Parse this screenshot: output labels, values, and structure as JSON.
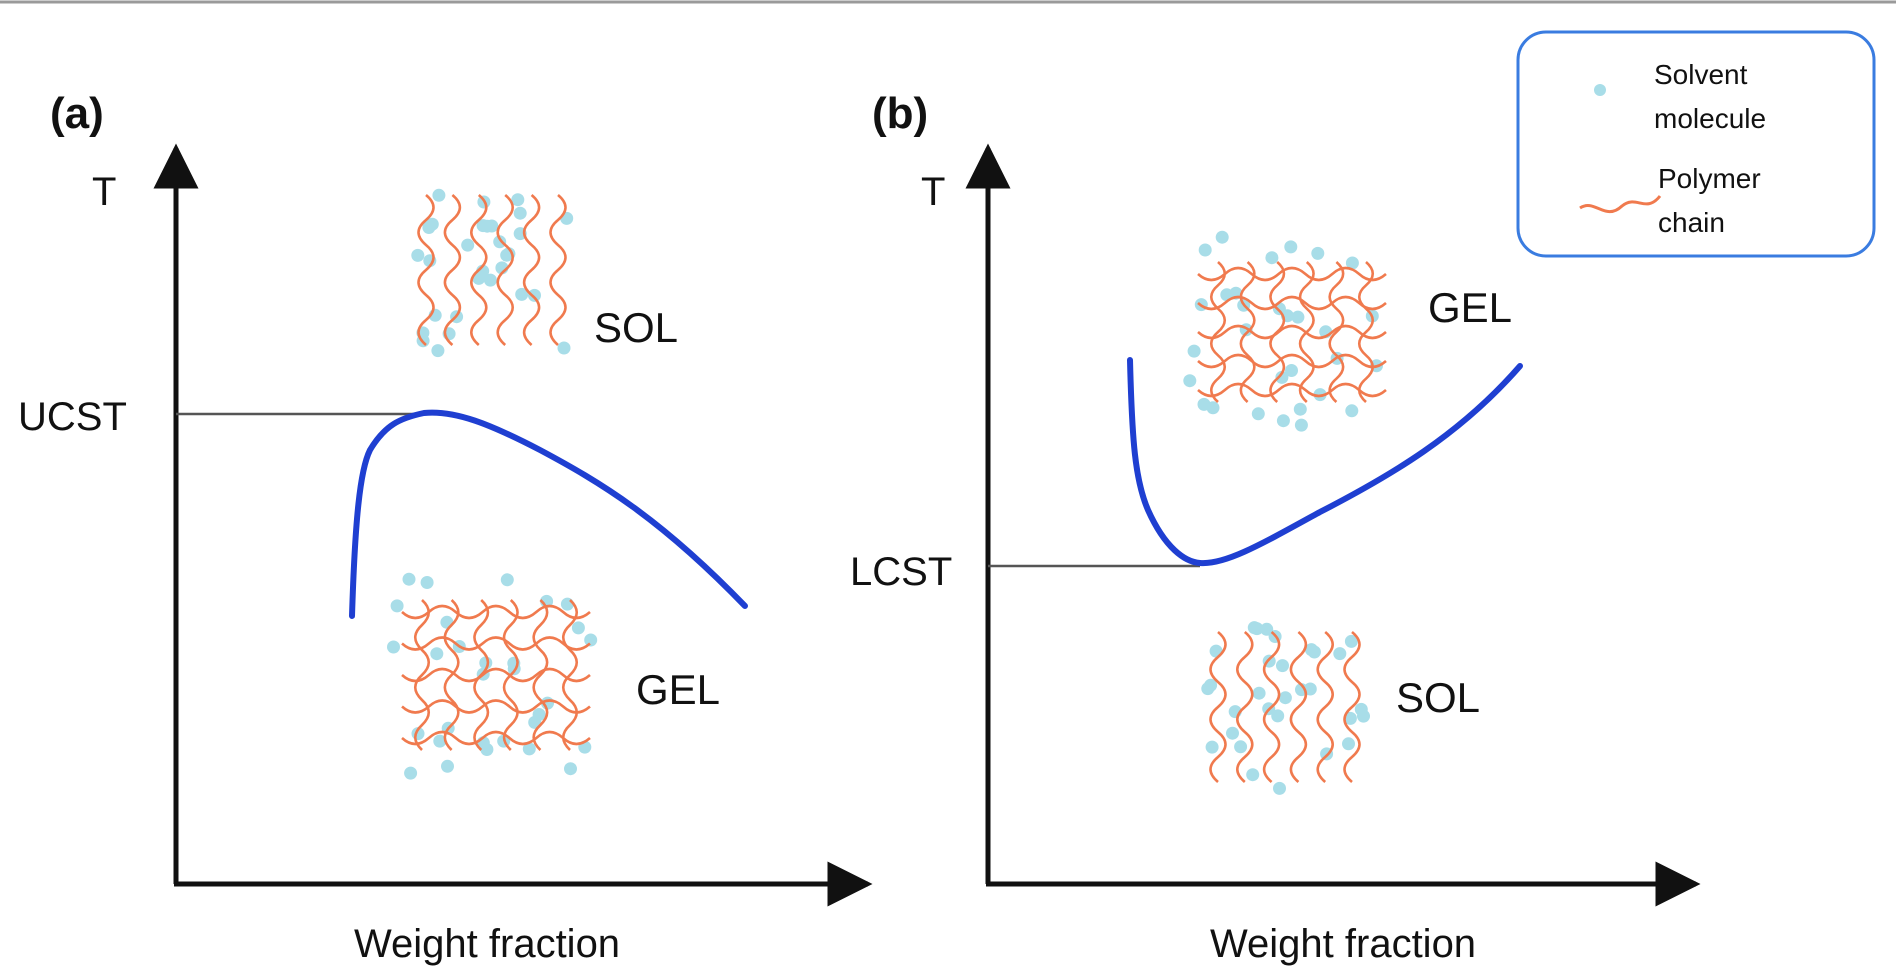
{
  "panels": [
    {
      "panel_label": "(a)",
      "y_axis_label": "T",
      "x_axis_label": "Weight fraction",
      "critical_label": "UCST",
      "upper_region_label": "SOL",
      "lower_region_label": "GEL"
    },
    {
      "panel_label": "(b)",
      "y_axis_label": "T",
      "x_axis_label": "Weight fraction",
      "critical_label": "LCST",
      "upper_region_label": "GEL",
      "lower_region_label": "SOL"
    }
  ],
  "legend": {
    "solvent_label_line1": "Solvent",
    "solvent_label_line2": "molecule",
    "polymer_label_line1": "Polymer",
    "polymer_label_line2": "chain"
  },
  "colors": {
    "curve": "#1f3fd1",
    "polymer": "#f07a4e",
    "solvent": "#a8dde8",
    "legend_border": "#3a7ce0",
    "axis": "#111111"
  }
}
